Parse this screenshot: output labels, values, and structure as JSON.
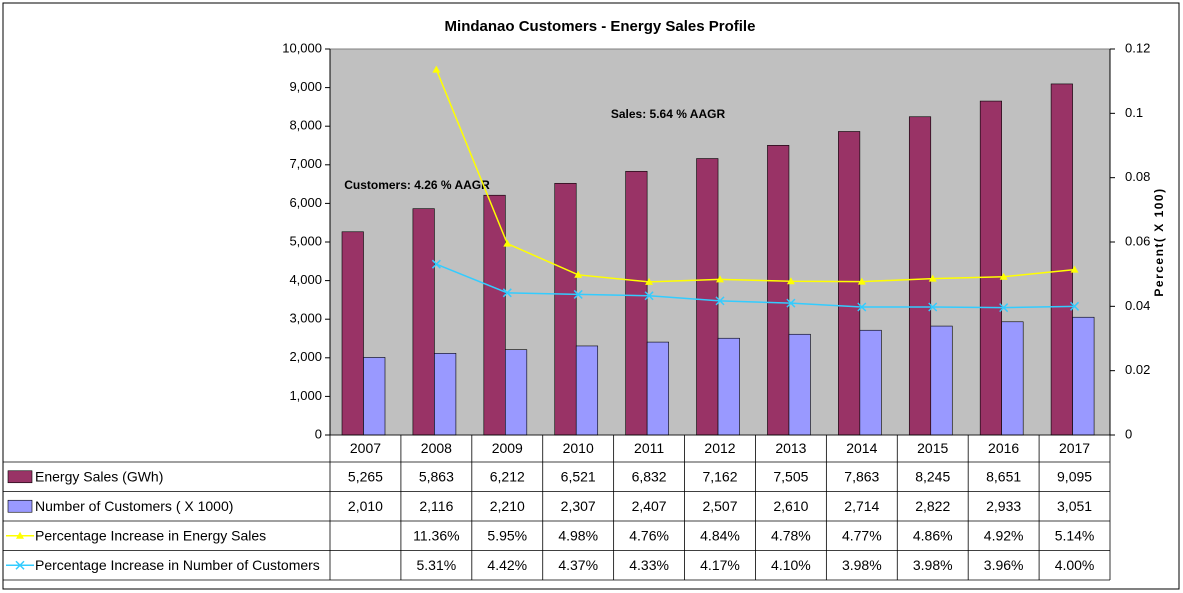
{
  "chart_data": {
    "type": "bar",
    "title": "Mindanao Customers - Energy Sales Profile",
    "categories": [
      "2007",
      "2008",
      "2009",
      "2010",
      "2011",
      "2012",
      "2013",
      "2014",
      "2015",
      "2016",
      "2017"
    ],
    "y2label": "Percent( X 100)",
    "annotations": [
      "Sales: 5.64 % AAGR",
      "Customers: 4.26 % AAGR"
    ],
    "ylim": [
      0,
      10000
    ],
    "yticks": [
      0,
      {
        "value": 1000,
        "label": "1,000"
      },
      {
        "value": 2000,
        "label": "2,000"
      },
      {
        "value": 3000,
        "label": "3,000"
      },
      {
        "value": 4000,
        "label": "4,000"
      },
      {
        "value": 5000,
        "label": "5,000"
      },
      {
        "value": 6000,
        "label": "6,000"
      },
      {
        "value": 7000,
        "label": "7,000"
      },
      {
        "value": 8000,
        "label": "8,000"
      },
      {
        "value": 9000,
        "label": "9,000"
      },
      {
        "value": 10000,
        "label": "10,000"
      }
    ],
    "y2lim": [
      0,
      0.12
    ],
    "y2ticks": [
      0,
      0.02,
      0.04,
      0.06,
      0.08,
      0.1,
      0.12
    ],
    "grid": false,
    "data_table": true,
    "series": [
      {
        "name": "Energy Sales (GWh)",
        "type": "bar",
        "color": "#993366",
        "values": [
          5265,
          5863,
          6212,
          6521,
          6832,
          7162,
          7505,
          7863,
          8245,
          8651,
          9095
        ],
        "value_labels": [
          "5,265",
          "5,863",
          "6,212",
          "6,521",
          "6,832",
          "7,162",
          "7,505",
          "7,863",
          "8,245",
          "8,651",
          "9,095"
        ]
      },
      {
        "name": "Number of Customers ( X 1000)",
        "type": "bar",
        "color": "#9999ff",
        "values": [
          2010,
          2116,
          2210,
          2307,
          2407,
          2507,
          2610,
          2714,
          2822,
          2933,
          3051
        ],
        "value_labels": [
          "2,010",
          "2,116",
          "2,210",
          "2,307",
          "2,407",
          "2,507",
          "2,610",
          "2,714",
          "2,822",
          "2,933",
          "3,051"
        ]
      },
      {
        "name": "Percentage Increase in Energy Sales",
        "type": "line",
        "marker": "triangle",
        "axis": "y2",
        "color": "#ffff00",
        "values": [
          null,
          0.1136,
          0.0595,
          0.0498,
          0.0476,
          0.0484,
          0.0478,
          0.0477,
          0.0486,
          0.0492,
          0.0514
        ],
        "value_labels": [
          null,
          "11.36%",
          "5.95%",
          "4.98%",
          "4.76%",
          "4.84%",
          "4.78%",
          "4.77%",
          "4.86%",
          "4.92%",
          "5.14%"
        ]
      },
      {
        "name": "Percentage Increase in Number of Customers",
        "type": "line",
        "marker": "x",
        "axis": "y2",
        "color": "#33ccff",
        "values": [
          null,
          0.0531,
          0.0442,
          0.0437,
          0.0433,
          0.0417,
          0.041,
          0.0398,
          0.0398,
          0.0396,
          0.04
        ],
        "value_labels": [
          null,
          "5.31%",
          "4.42%",
          "4.37%",
          "4.33%",
          "4.17%",
          "4.10%",
          "3.98%",
          "3.98%",
          "3.96%",
          "4.00%"
        ]
      }
    ]
  }
}
